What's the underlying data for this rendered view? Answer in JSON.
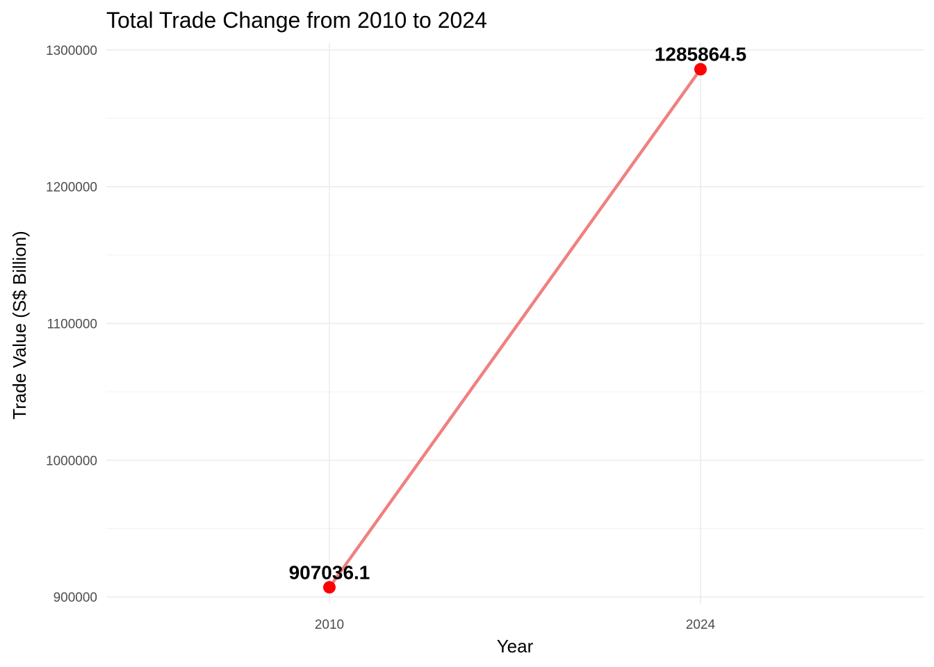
{
  "chart_data": {
    "type": "line",
    "title": "Total Trade Change from 2010 to 2024",
    "xlabel": "Year",
    "ylabel": "Trade Value (S$ Billion)",
    "categories": [
      "2010",
      "2024"
    ],
    "values": [
      907036.1,
      1285864.5
    ],
    "data_labels": [
      "907036.1",
      "1285864.5"
    ],
    "y_ticks": [
      900000,
      1000000,
      1100000,
      1200000,
      1300000
    ],
    "y_tick_labels": [
      "900000",
      "1000000",
      "1100000",
      "1200000",
      "1300000"
    ],
    "ylim": [
      895000,
      1305000
    ],
    "line_color": "#f08080",
    "point_color": "#ff0000",
    "grid": true,
    "legend": "none"
  }
}
